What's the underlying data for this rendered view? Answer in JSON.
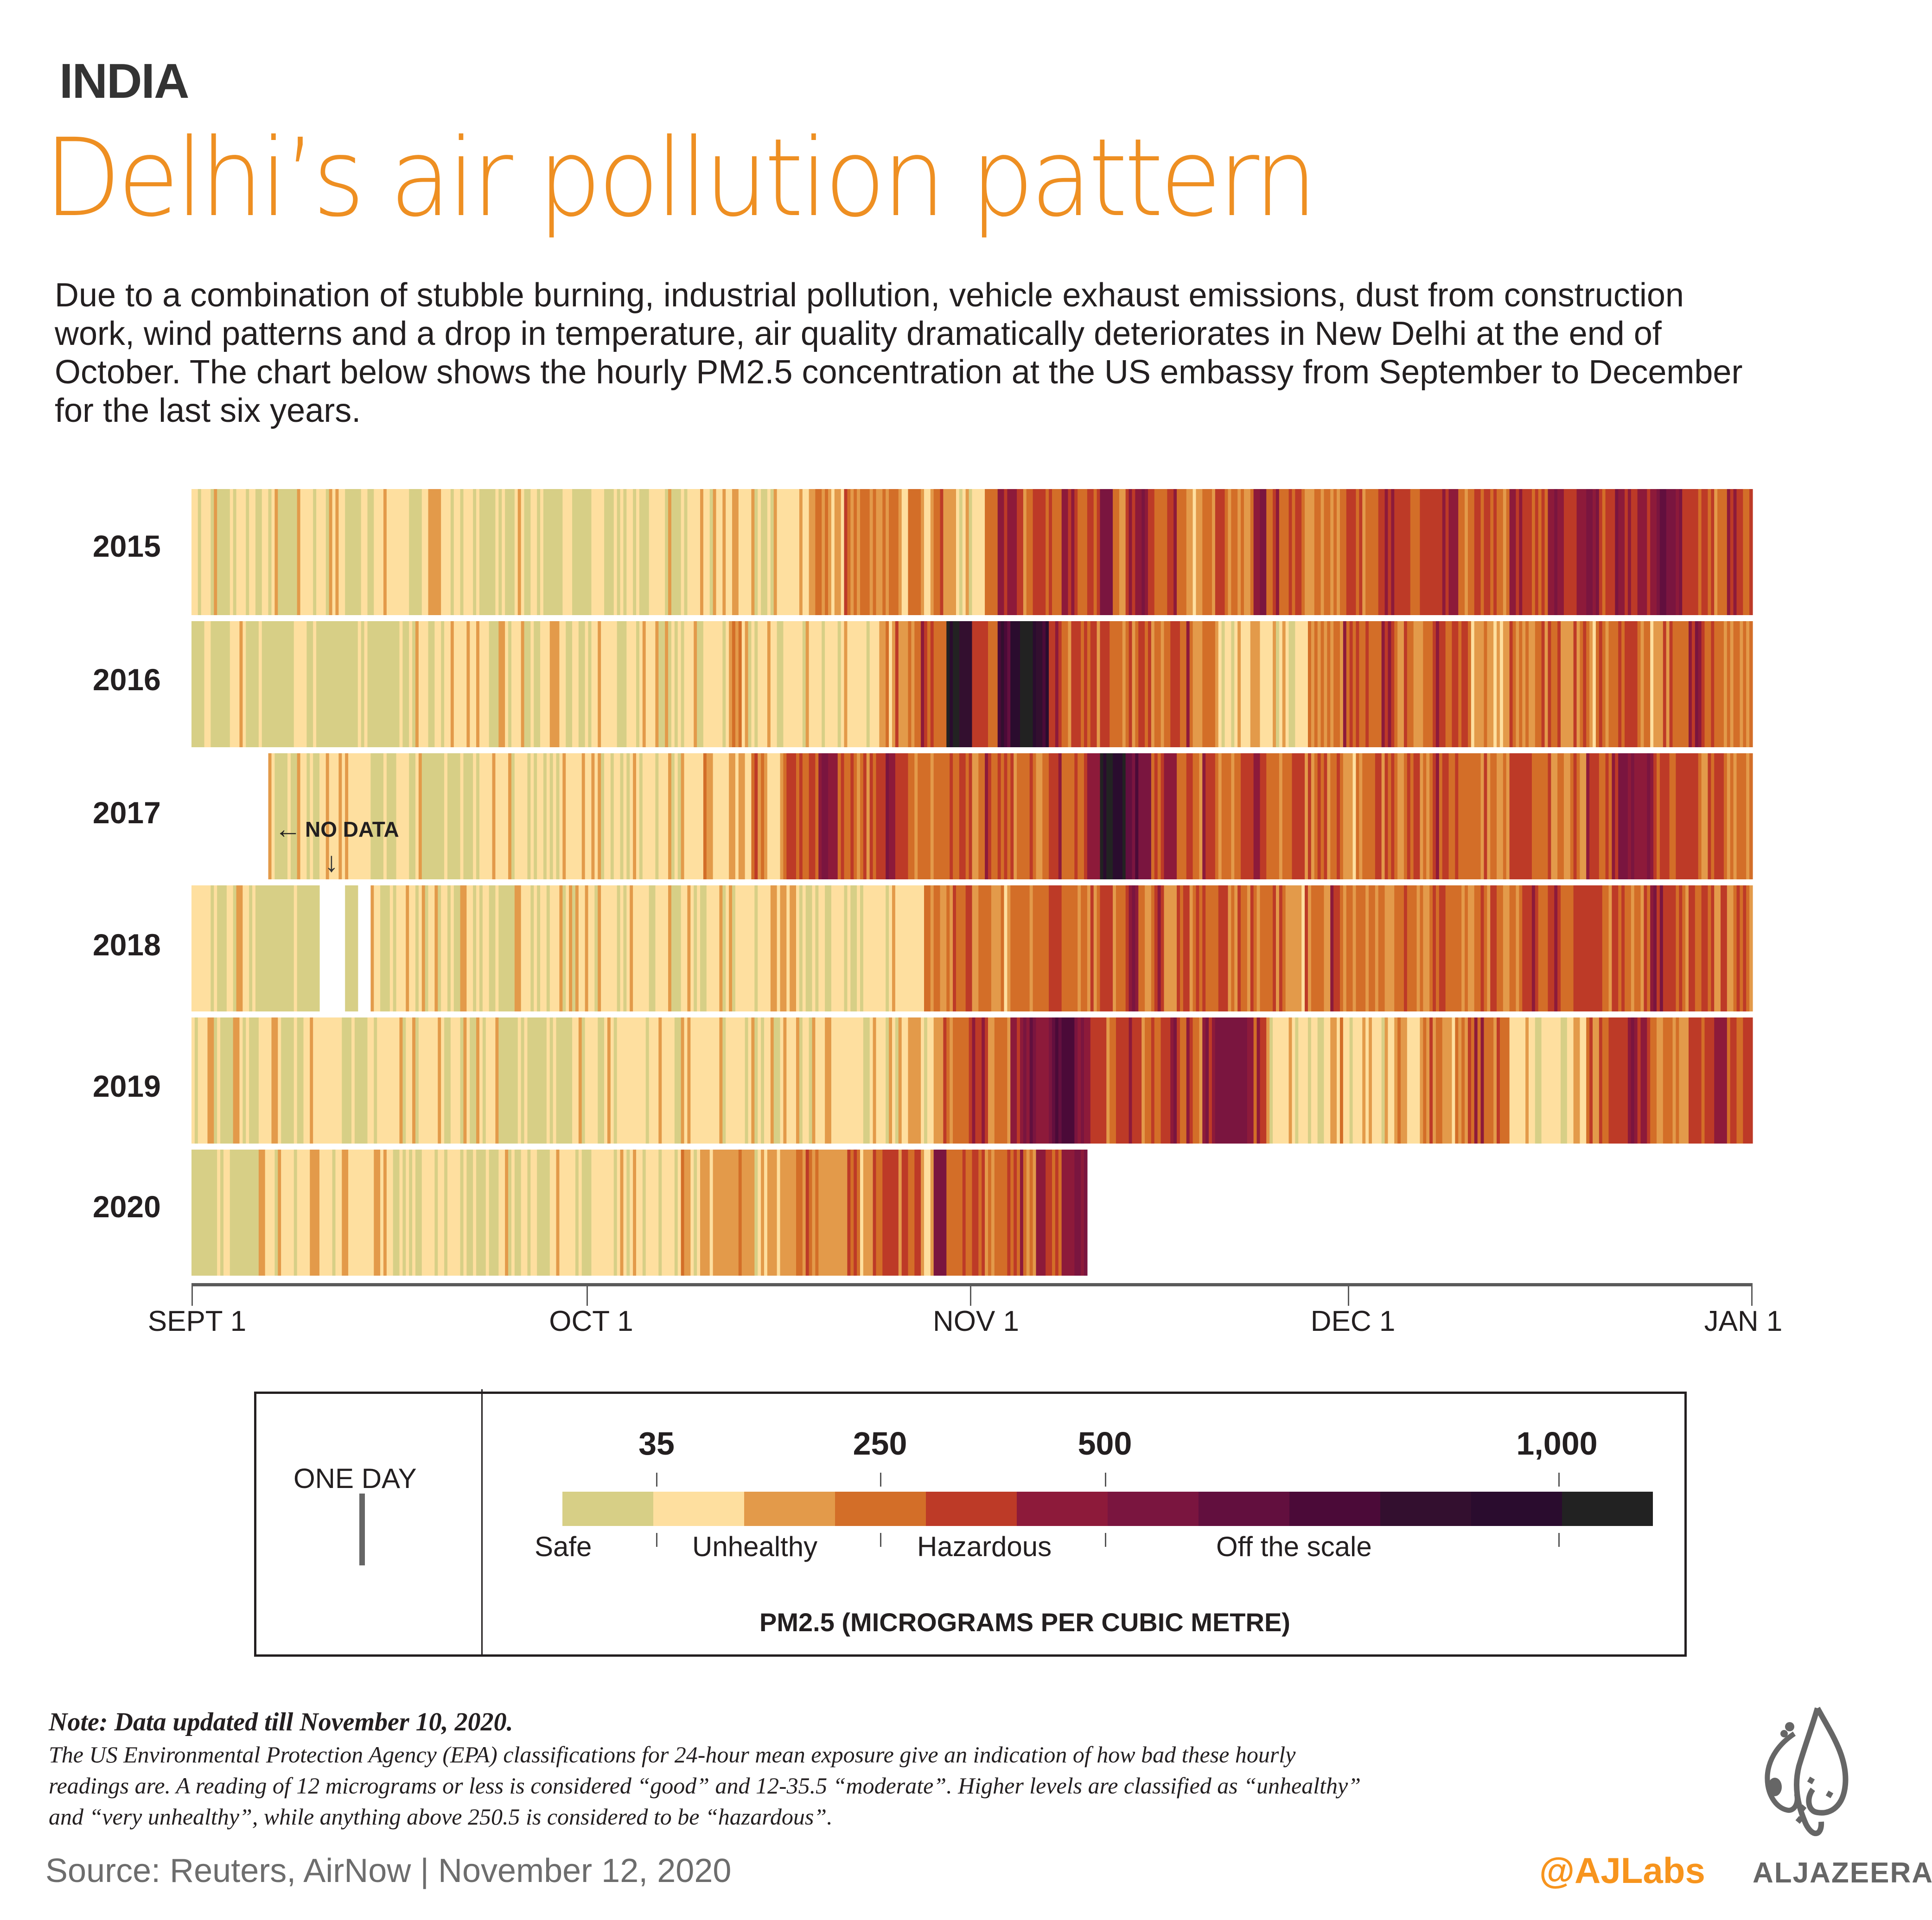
{
  "header": {
    "kicker": "INDIA",
    "title": "Delhi’s air pollution pattern",
    "description": "Due to a combination of stubble burning, industrial pollution, vehicle exhaust emissions, dust from construction work, wind patterns and a drop in temperature, air quality dramatically deteriorates in New Delhi at the end of October. The chart below shows the hourly PM2.5 concentration at the US embassy from September to December for the last six years."
  },
  "annotations": {
    "no_data": "NO DATA",
    "left_arrow": "←",
    "down_arrow": "↓"
  },
  "chart_data": {
    "type": "heatmap",
    "title": "Hourly PM2.5 concentration at the US embassy, New Delhi (Sept–Dec)",
    "xlabel": "",
    "ylabel": "",
    "x_range": [
      "Sept 1",
      "Jan 1"
    ],
    "x_ticks": [
      "SEPT 1",
      "OCT 1",
      "NOV 1",
      "DEC 1",
      "JAN 1"
    ],
    "rows": [
      "2015",
      "2016",
      "2017",
      "2018",
      "2019",
      "2020"
    ],
    "days_in_range": 122,
    "bins": [
      {
        "min": 0,
        "max": 35,
        "color": "#d7cf86",
        "category": "Safe"
      },
      {
        "min": 35,
        "max": 140,
        "color": "#fedf9f",
        "category": "Unhealthy"
      },
      {
        "min": 140,
        "max": 250,
        "color": "#e39a4a",
        "category": "Unhealthy"
      },
      {
        "min": 250,
        "max": 375,
        "color": "#d36e28",
        "category": "Hazardous"
      },
      {
        "min": 375,
        "max": 500,
        "color": "#bd3a27",
        "category": "Hazardous"
      },
      {
        "min": 500,
        "max": 575,
        "color": "#8d1a3a",
        "category": "Off the scale"
      },
      {
        "min": 575,
        "max": 650,
        "color": "#7a153f",
        "category": "Off the scale"
      },
      {
        "min": 650,
        "max": 725,
        "color": "#620f3e",
        "category": "Off the scale"
      },
      {
        "min": 725,
        "max": 800,
        "color": "#4b0a38",
        "category": "Off the scale"
      },
      {
        "min": 800,
        "max": 900,
        "color": "#330f2f",
        "category": "Off the scale"
      },
      {
        "min": 900,
        "max": 1000,
        "color": "#2a0c2e",
        "category": "Off the scale"
      },
      {
        "min": 1000,
        "max": null,
        "color": "#222222",
        "category": "Off the scale"
      }
    ],
    "series": [
      {
        "name": "2015",
        "start_day": 0,
        "end_day": 122,
        "daily_level": [
          1,
          1,
          0,
          1,
          1,
          0,
          1,
          0,
          1,
          1,
          1,
          1,
          0,
          1,
          1,
          1,
          1,
          0,
          1,
          1,
          1,
          1,
          0,
          0,
          0,
          1,
          1,
          0,
          1,
          1,
          0,
          1,
          1,
          1,
          1,
          0,
          1,
          1,
          1,
          1,
          1,
          1,
          1,
          1,
          0,
          1,
          1,
          1,
          2,
          3,
          2,
          3,
          3,
          2,
          3,
          2,
          3,
          2,
          3,
          2,
          1,
          1,
          3,
          4,
          5,
          3,
          4,
          3,
          5,
          3,
          4,
          6,
          3,
          4,
          5,
          3,
          4,
          3,
          2,
          3,
          4,
          3,
          3,
          5,
          4,
          3,
          4,
          2,
          3,
          3,
          4,
          3,
          4,
          5,
          4,
          3,
          4,
          4,
          5,
          3,
          4,
          4,
          3,
          5,
          4,
          3,
          5,
          4,
          5,
          6,
          4,
          5,
          4,
          5,
          6,
          7,
          5,
          4,
          4,
          3,
          4,
          4
        ]
      },
      {
        "name": "2016",
        "start_day": 0,
        "end_day": 122,
        "daily_level": [
          0,
          0,
          0,
          1,
          0,
          0,
          0,
          0,
          1,
          0,
          0,
          0,
          0,
          1,
          0,
          0,
          0,
          1,
          1,
          1,
          1,
          1,
          1,
          0,
          1,
          1,
          1,
          1,
          2,
          1,
          1,
          1,
          1,
          1,
          1,
          1,
          1,
          1,
          1,
          1,
          1,
          1,
          2,
          1,
          1,
          1,
          1,
          1,
          1,
          1,
          1,
          1,
          1,
          1,
          2,
          3,
          3,
          4,
          3,
          11,
          9,
          4,
          4,
          8,
          10,
          11,
          9,
          4,
          3,
          4,
          3,
          4,
          3,
          3,
          4,
          3,
          3,
          4,
          2,
          3,
          1,
          1,
          1,
          1,
          1,
          1,
          1,
          2,
          3,
          3,
          4,
          3,
          3,
          4,
          3,
          3,
          3,
          4,
          3,
          4,
          2,
          2,
          2,
          3,
          3,
          3,
          4,
          2,
          3,
          2,
          3,
          3,
          4,
          3,
          2,
          3,
          3,
          5,
          4,
          3,
          3,
          3
        ]
      },
      {
        "name": "2017",
        "start_day": 6,
        "end_day": 122,
        "daily_level": [
          1,
          1,
          1,
          0,
          1,
          1,
          1,
          1,
          1,
          0,
          1,
          1,
          0,
          0,
          0,
          0,
          1,
          1,
          1,
          1,
          1,
          1,
          1,
          1,
          1,
          1,
          1,
          1,
          1,
          1,
          1,
          1,
          1,
          2,
          2,
          1,
          2,
          2,
          3,
          2,
          3,
          3,
          4,
          6,
          4,
          4,
          3,
          4,
          5,
          4,
          3,
          3,
          3,
          3,
          4,
          3,
          4,
          3,
          3,
          3,
          3,
          4,
          3,
          4,
          5,
          11,
          10,
          7,
          6,
          4,
          5,
          4,
          3,
          4,
          3,
          3,
          4,
          4,
          3,
          3,
          4,
          3,
          3,
          3,
          2,
          3,
          4,
          3,
          3,
          4,
          3,
          4,
          4,
          3,
          3,
          3,
          3,
          4,
          4,
          3,
          3,
          3,
          3,
          4,
          3,
          5,
          6,
          5,
          4,
          3,
          4,
          4,
          3,
          4,
          3,
          3
        ]
      },
      {
        "name": "2018",
        "start_day": 0,
        "end_day": 122,
        "daily_level": [
          1,
          1,
          0,
          1,
          1,
          0,
          0,
          0,
          0,
          0,
          null,
          null,
          0,
          null,
          1,
          1,
          1,
          1,
          1,
          1,
          0,
          1,
          0,
          0,
          0,
          1,
          1,
          1,
          1,
          1,
          1,
          1,
          1,
          1,
          1,
          1,
          1,
          1,
          1,
          1,
          1,
          1,
          1,
          1,
          1,
          1,
          1,
          1,
          1,
          1,
          1,
          1,
          1,
          1,
          1,
          1,
          1,
          2,
          3,
          3,
          4,
          3,
          3,
          2,
          3,
          3,
          3,
          4,
          3,
          3,
          3,
          4,
          3,
          5,
          3,
          4,
          3,
          4,
          3,
          3,
          4,
          3,
          3,
          3,
          3,
          3,
          2,
          3,
          3,
          4,
          3,
          3,
          3,
          2,
          3,
          3,
          3,
          4,
          3,
          3,
          3,
          3,
          3,
          3,
          4,
          3,
          4,
          3,
          4,
          4,
          3,
          4,
          3,
          3,
          5,
          4,
          3,
          4,
          4,
          3,
          3,
          3
        ]
      },
      {
        "name": "2019",
        "start_day": 0,
        "end_day": 122,
        "daily_level": [
          1,
          1,
          0,
          1,
          1,
          1,
          1,
          0,
          1,
          1,
          1,
          1,
          0,
          1,
          1,
          1,
          1,
          1,
          1,
          1,
          1,
          1,
          1,
          1,
          0,
          0,
          0,
          0,
          0,
          0,
          1,
          1,
          1,
          1,
          1,
          1,
          1,
          1,
          1,
          1,
          1,
          1,
          1,
          1,
          1,
          1,
          1,
          1,
          1,
          1,
          1,
          1,
          1,
          1,
          1,
          1,
          2,
          1,
          3,
          3,
          3,
          4,
          3,
          3,
          5,
          6,
          5,
          7,
          8,
          6,
          4,
          3,
          4,
          4,
          3,
          4,
          5,
          4,
          3,
          5,
          6,
          6,
          5,
          4,
          1,
          1,
          1,
          1,
          1,
          2,
          1,
          1,
          1,
          1,
          2,
          1,
          3,
          3,
          2,
          3,
          4,
          3,
          3,
          1,
          1,
          1,
          1,
          1,
          2,
          3,
          4,
          4,
          5,
          4,
          2,
          3,
          3,
          4,
          4,
          5,
          3,
          4
        ]
      },
      {
        "name": "2020",
        "start_day": 0,
        "end_day": 70,
        "daily_level": [
          0,
          0,
          1,
          0,
          0,
          1,
          1,
          1,
          1,
          1,
          1,
          1,
          1,
          1,
          1,
          1,
          1,
          0,
          1,
          1,
          1,
          1,
          1,
          0,
          1,
          1,
          1,
          0,
          1,
          1,
          1,
          1,
          1,
          1,
          1,
          1,
          1,
          1,
          2,
          1,
          2,
          2,
          2,
          2,
          1,
          2,
          2,
          2,
          3,
          2,
          2,
          3,
          2,
          3,
          4,
          3,
          3,
          2,
          5,
          3,
          3,
          4,
          3,
          3,
          4,
          3,
          5,
          4,
          5,
          6
        ]
      }
    ]
  },
  "legend": {
    "one_day_label": "ONE DAY",
    "thresholds": [
      "35",
      "250",
      "500",
      "1,000"
    ],
    "categories": [
      "Safe",
      "Unhealthy",
      "Hazardous",
      "Off the scale"
    ],
    "unit_label": "PM2.5 (MICROGRAMS PER CUBIC METRE)"
  },
  "notes": {
    "heading": "Note: Data updated till November 10, 2020.",
    "body": "The US Environmental Protection Agency (EPA) classifications for 24-hour mean exposure give an indication of how bad these hourly readings are. A reading of 12 micrograms or less is considered “good” and 12-35.5 “moderate”. Higher levels are classified as “unhealthy” and “very unhealthy”, while anything above 250.5 is considered to be “hazardous”."
  },
  "footer": {
    "source": "Source: Reuters, AirNow |  November 12, 2020",
    "handle": "@AJLabs",
    "brand": "ALJAZEERA"
  },
  "colors": {
    "title_orange": "#ee8f22",
    "handle_orange": "#f7941d",
    "brand_gray": "#666666"
  }
}
